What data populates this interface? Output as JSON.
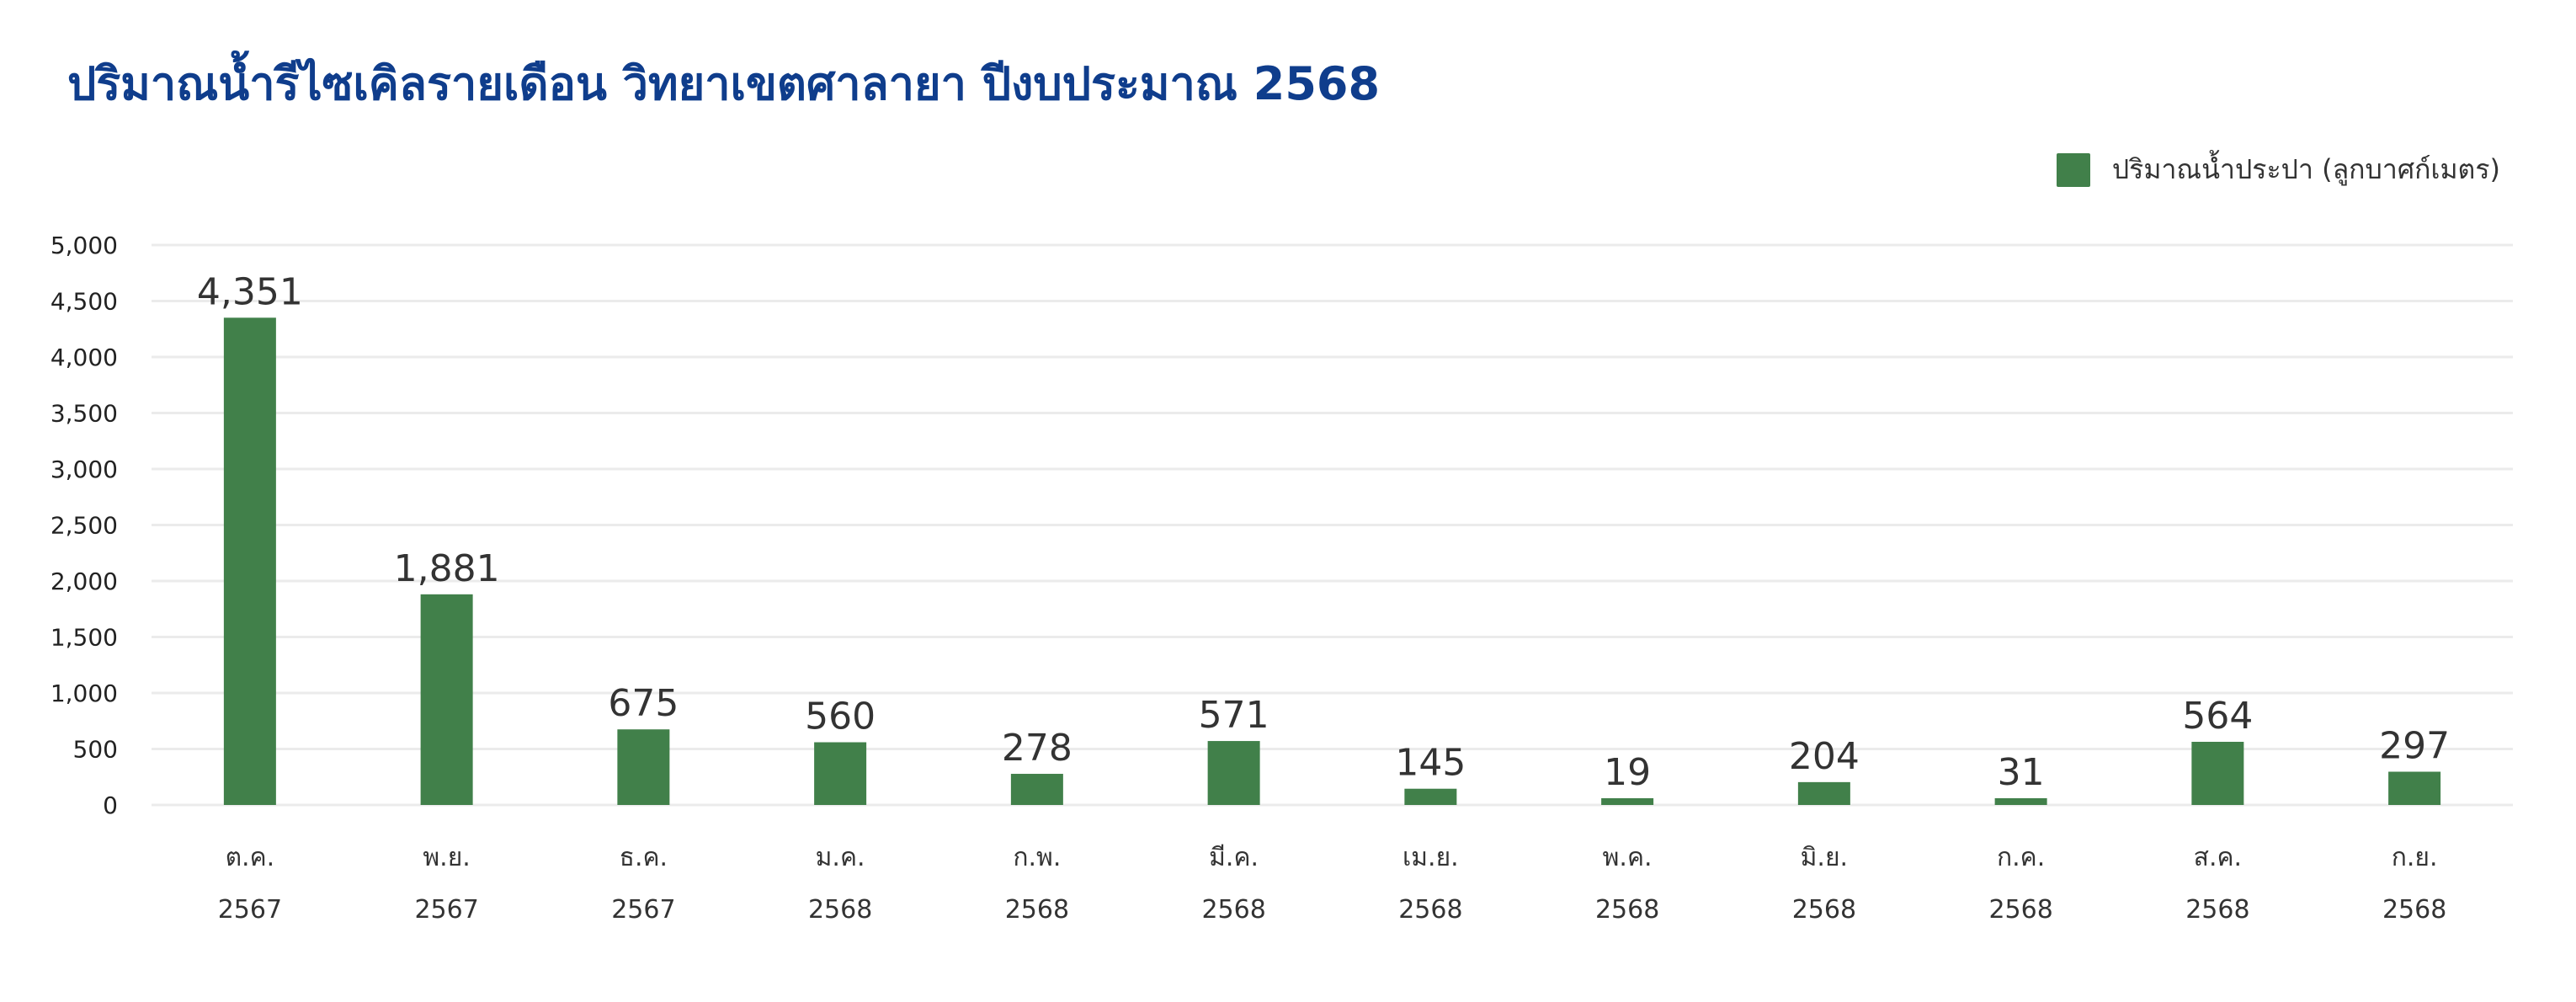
{
  "chart_data": {
    "type": "bar",
    "title": "ปริมาณน้ำรีไซเคิลรายเดือน วิทยาเขตศาลายา ปีงบประมาณ 2568",
    "legend": {
      "placement": "top-right",
      "label": "ปริมาณน้ำประปา (ลูกบาศก์เมตร)"
    },
    "categories": [
      [
        "ต.ค.",
        "2567"
      ],
      [
        "พ.ย.",
        "2567"
      ],
      [
        "ธ.ค.",
        "2567"
      ],
      [
        "ม.ค.",
        "2568"
      ],
      [
        "ก.พ.",
        "2568"
      ],
      [
        "มี.ค.",
        "2568"
      ],
      [
        "เม.ย.",
        "2568"
      ],
      [
        "พ.ค.",
        "2568"
      ],
      [
        "มิ.ย.",
        "2568"
      ],
      [
        "ก.ค.",
        "2568"
      ],
      [
        "ส.ค.",
        "2568"
      ],
      [
        "ก.ย.",
        "2568"
      ]
    ],
    "series": [
      {
        "name": "ปริมาณน้ำประปา (ลูกบาศก์เมตร)",
        "color": "#41804a",
        "values": [
          4351,
          1881,
          675,
          560,
          278,
          571,
          145,
          19,
          204,
          31,
          564,
          297
        ]
      }
    ],
    "data_labels": [
      "4,351",
      "1,881",
      "675",
      "560",
      "278",
      "571",
      "145",
      "19",
      "204",
      "31",
      "564",
      "297"
    ],
    "ylim": [
      0,
      5000
    ],
    "yticks": [
      0,
      500,
      1000,
      1500,
      2000,
      2500,
      3000,
      3500,
      4000,
      4500,
      5000
    ],
    "ytick_labels": [
      "0",
      "500",
      "1,000",
      "1,500",
      "2,000",
      "2,500",
      "3,000",
      "3,500",
      "4,000",
      "4,500",
      "5,000"
    ],
    "grid": true,
    "colors": {
      "bar": "#41804a",
      "grid": "#ebebeb",
      "title": "#0f3d8c"
    }
  }
}
